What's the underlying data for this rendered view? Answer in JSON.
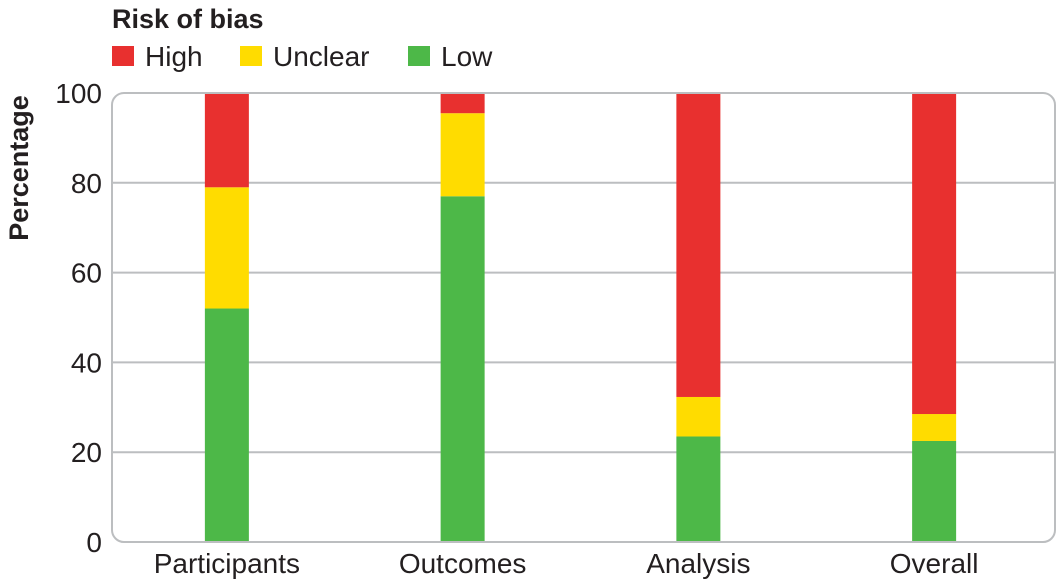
{
  "chart_data": {
    "type": "bar",
    "stacked": true,
    "orientation": "vertical",
    "legend_title": "Risk of bias",
    "legend_position": "top-left",
    "categories": [
      "Participants",
      "Outcomes",
      "Analysis",
      "Overall"
    ],
    "series": [
      {
        "name": "Low",
        "color": "#4db848",
        "values": [
          52,
          77,
          23.5,
          22.5
        ]
      },
      {
        "name": "Unclear",
        "color": "#ffdc00",
        "values": [
          27,
          18.5,
          8.8,
          6
        ]
      },
      {
        "name": "High",
        "color": "#e8302f",
        "values": [
          21,
          4.5,
          67.7,
          71.5
        ]
      }
    ],
    "legend_order": [
      "High",
      "Unclear",
      "Low"
    ],
    "title": "",
    "xlabel": "",
    "ylabel": "Percentage",
    "ylim": [
      0,
      100
    ],
    "yticks": [
      0,
      20,
      40,
      60,
      80,
      100
    ],
    "grid": "horizontal",
    "gridline_color": "#bcbec0",
    "frame_color": "#bcbec0"
  }
}
